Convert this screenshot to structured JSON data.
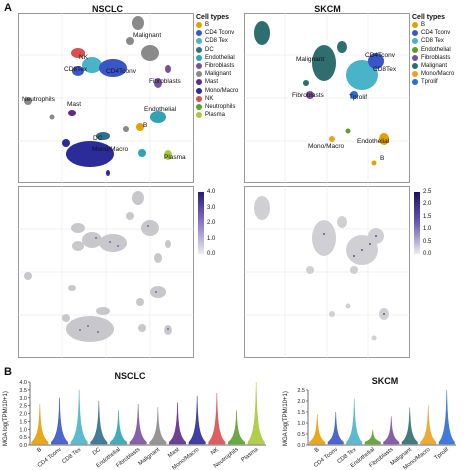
{
  "panel_a_letter": "A",
  "panel_b_letter": "B",
  "nsclc": {
    "title": "NSCLC",
    "legend_title": "Cell types",
    "legend": [
      {
        "label": "B",
        "color": "#e69f00"
      },
      {
        "label": "CD4 Tconv",
        "color": "#3a55c8"
      },
      {
        "label": "CD8 Tex",
        "color": "#49b3c9"
      },
      {
        "label": "DC",
        "color": "#2e6e8e"
      },
      {
        "label": "Endothelial",
        "color": "#2fa3b5"
      },
      {
        "label": "Fibroblasts",
        "color": "#7a4fa0"
      },
      {
        "label": "Malignant",
        "color": "#8a8a8a"
      },
      {
        "label": "Mast",
        "color": "#5c2e88"
      },
      {
        "label": "Mono/Macro",
        "color": "#2b2b9a"
      },
      {
        "label": "NK",
        "color": "#d94f4f"
      },
      {
        "label": "Neutrophils",
        "color": "#5aa02c"
      },
      {
        "label": "Plasma",
        "color": "#a8c93a"
      }
    ],
    "umap_labels": [
      "Malignant",
      "NK",
      "CD8Tex",
      "CD4Tconv",
      "Fibroblasts",
      "Neutrophils",
      "Mast",
      "Endothelial",
      "B",
      "DC",
      "Mono/Macro",
      "Plasma"
    ],
    "colorbar_ticks": [
      "4.0",
      "3.0",
      "2.0",
      "1.0",
      "0.0"
    ]
  },
  "skcm": {
    "title": "SKCM",
    "legend_title": "Cell types",
    "legend": [
      {
        "label": "B",
        "color": "#e69f00"
      },
      {
        "label": "CD4 Tconv",
        "color": "#3a55c8"
      },
      {
        "label": "CD8 Tex",
        "color": "#49b3c9"
      },
      {
        "label": "Endothelial",
        "color": "#5aa02c"
      },
      {
        "label": "Fibroblasts",
        "color": "#7a4fa0"
      },
      {
        "label": "Malignant",
        "color": "#2e6e6e"
      },
      {
        "label": "Mono/Macro",
        "color": "#f0a020"
      },
      {
        "label": "Tprolif",
        "color": "#2b6bd6"
      }
    ],
    "umap_labels": [
      "Malignant",
      "CD4Tconv",
      "CD8Tex",
      "Fibroblasts",
      "Tprolif",
      "Mono/Macro",
      "Endothelial",
      "B"
    ],
    "colorbar_ticks": [
      "2.5",
      "2.0",
      "1.5",
      "1.0",
      "0.5",
      "0.0"
    ]
  },
  "chart_data": [
    {
      "type": "violin",
      "title": "NSCLC",
      "ylabel": "MGA log(TPM/10+1)",
      "ylim": [
        0,
        4.0
      ],
      "yticks": [
        "4.0",
        "3.5",
        "3.0",
        "2.5",
        "2.0",
        "1.5",
        "1.0",
        "0.5",
        "0.0"
      ],
      "categories": [
        "B",
        "CD4 Tconv",
        "CD8 Tex",
        "DC",
        "Endothelial",
        "Fibroblasts",
        "Malignant",
        "Mast",
        "Mono/Macro",
        "NK",
        "Neutrophils",
        "Plasma"
      ],
      "values": [
        2.6,
        3.0,
        3.5,
        2.8,
        2.2,
        2.6,
        2.4,
        2.7,
        3.1,
        3.3,
        2.2,
        4.0
      ],
      "colors": [
        "#e69f00",
        "#3a55c8",
        "#49b3c9",
        "#2e6e8e",
        "#2fa3b5",
        "#7a4fa0",
        "#8a8a8a",
        "#5c2e88",
        "#2b2b9a",
        "#d94f4f",
        "#5aa02c",
        "#a8c93a"
      ]
    },
    {
      "type": "violin",
      "title": "SKCM",
      "ylabel": "MGA log(TPM/10+1)",
      "ylim": [
        0,
        2.5
      ],
      "yticks": [
        "2.5",
        "2.0",
        "1.5",
        "1.0",
        "0.5",
        "0.0"
      ],
      "categories": [
        "B",
        "CD4 Tconv",
        "CD8 Tex",
        "Endothelial",
        "Fibroblasts",
        "Malignant",
        "Mono/Macro",
        "Tprolif"
      ],
      "values": [
        1.4,
        1.5,
        2.1,
        0.7,
        1.3,
        1.7,
        1.8,
        2.5
      ],
      "colors": [
        "#e69f00",
        "#3a55c8",
        "#49b3c9",
        "#5aa02c",
        "#7a4fa0",
        "#2e6e6e",
        "#f0a020",
        "#2b6bd6"
      ]
    }
  ]
}
